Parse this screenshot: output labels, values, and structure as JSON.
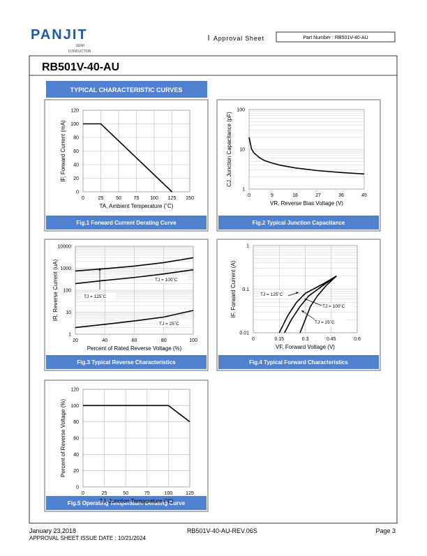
{
  "header": {
    "logo": "PANJIT",
    "logo_sub1": "SEMI",
    "logo_sub2": "CONDUCTOR",
    "sheet": "Approval  Sheet",
    "part_number": "Part Number : RB501V-40-AU"
  },
  "title": "RB501V-40-AU",
  "section": "TYPICAL CHARACTERISTIC CURVES",
  "chart_data": [
    {
      "type": "line",
      "caption": "Fig.1 Forward Current Derating Curve",
      "xlabel": "TA, Ambient Temperature (˚C)",
      "ylabel": "IF, Forward Current (mA)",
      "xlim": [
        0,
        150
      ],
      "xticks": [
        0,
        25,
        50,
        75,
        100,
        125,
        150
      ],
      "ylim": [
        0,
        120
      ],
      "yticks": [
        0,
        20,
        40,
        60,
        80,
        100,
        120
      ],
      "log_y": false,
      "grid": "both",
      "series": [
        {
          "color": "#000000",
          "x": [
            0,
            25,
            125
          ],
          "values": [
            100,
            100,
            0
          ]
        }
      ]
    },
    {
      "type": "line",
      "caption": "Fig.2 Typical Junction Capacitance",
      "xlabel": "VR, Reverse Bias Voltage (V)",
      "ylabel": "CJ, Junction Capacitance (pF)",
      "xlim": [
        0,
        45
      ],
      "xticks": [
        0,
        9,
        18,
        27,
        36,
        45
      ],
      "ylim": [
        1,
        100
      ],
      "yticks": [
        1,
        10,
        100
      ],
      "log_y": true,
      "grid": "y",
      "series": [
        {
          "color": "#000000",
          "x": [
            0,
            1,
            2,
            4,
            6,
            9,
            12,
            18,
            27,
            36,
            45
          ],
          "values": [
            20,
            10,
            8,
            6.2,
            5.2,
            4.5,
            4,
            3.4,
            2.9,
            2.6,
            2.4
          ]
        }
      ]
    },
    {
      "type": "line",
      "caption": "Fig.3 Typical Reverse Characteristics",
      "xlabel": "Percent of Rated Reverse Voltage (%)",
      "ylabel": "IR, Reverse Current (uA)",
      "xlim": [
        20,
        100
      ],
      "xticks": [
        20,
        40,
        60,
        80,
        100
      ],
      "ylim": [
        1,
        10000
      ],
      "yticks": [
        1,
        10,
        100,
        1000,
        10000
      ],
      "log_y": true,
      "grid": "both",
      "annotations": [
        "TJ = 100˚C",
        "TJ = 125˚C",
        "TJ = 25˚C"
      ],
      "series": [
        {
          "color": "#000000",
          "x": [
            20,
            40,
            60,
            80,
            100
          ],
          "values": [
            750,
            950,
            1250,
            1800,
            3000
          ]
        },
        {
          "color": "#000000",
          "x": [
            20,
            40,
            60,
            80,
            100
          ],
          "values": [
            200,
            280,
            380,
            550,
            850
          ]
        },
        {
          "color": "#000000",
          "x": [
            20,
            40,
            60,
            80,
            100
          ],
          "values": [
            2,
            2.8,
            4,
            6,
            12
          ]
        }
      ]
    },
    {
      "type": "line",
      "caption": "Fig.4 Typical Forward Characteristics",
      "xlabel": "VF, Forward Voltage (V)",
      "ylabel": "IF, Forward Current (A)",
      "xlim": [
        0,
        0.6
      ],
      "xticks": [
        0,
        0.15,
        0.3,
        0.45,
        0.6
      ],
      "ylim": [
        0.01,
        1
      ],
      "yticks": [
        0.01,
        0.1,
        1
      ],
      "log_y": true,
      "grid": "both",
      "annotations": [
        "TJ = 125˚C",
        "TJ = 100˚C",
        "TJ = 25˚C"
      ],
      "series": [
        {
          "color": "#000000",
          "x": [
            0.15,
            0.2,
            0.25,
            0.3,
            0.4,
            0.48
          ],
          "values": [
            0.01,
            0.025,
            0.05,
            0.08,
            0.13,
            0.2
          ]
        },
        {
          "color": "#000000",
          "x": [
            0.18,
            0.22,
            0.27,
            0.32,
            0.4,
            0.48
          ],
          "values": [
            0.01,
            0.02,
            0.04,
            0.07,
            0.12,
            0.2
          ]
        },
        {
          "color": "#000000",
          "x": [
            0.27,
            0.3,
            0.33,
            0.37,
            0.42,
            0.48
          ],
          "values": [
            0.01,
            0.02,
            0.04,
            0.07,
            0.12,
            0.2
          ]
        }
      ]
    },
    {
      "type": "line",
      "caption": "Fig.5 Operating Temperature Derating Curve",
      "xlabel": "TJ, Junction Temperature (˚C)",
      "ylabel": "Percent of Reverse Voltage (%)",
      "xlim": [
        0,
        125
      ],
      "xticks": [
        0,
        25,
        50,
        75,
        100,
        125
      ],
      "ylim": [
        0,
        120
      ],
      "yticks": [
        0,
        20,
        40,
        60,
        80,
        100,
        120
      ],
      "log_y": false,
      "grid": "both",
      "series": [
        {
          "color": "#000000",
          "x": [
            0,
            100,
            125
          ],
          "values": [
            100,
            100,
            80
          ]
        }
      ]
    }
  ],
  "footer": {
    "date": "January 23,2018",
    "issue": "APPROVAL SHEET ISSUE DATE : 10/21/2024",
    "rev": "RB501V-40-AU-REV.06S",
    "page": "Page 3"
  }
}
